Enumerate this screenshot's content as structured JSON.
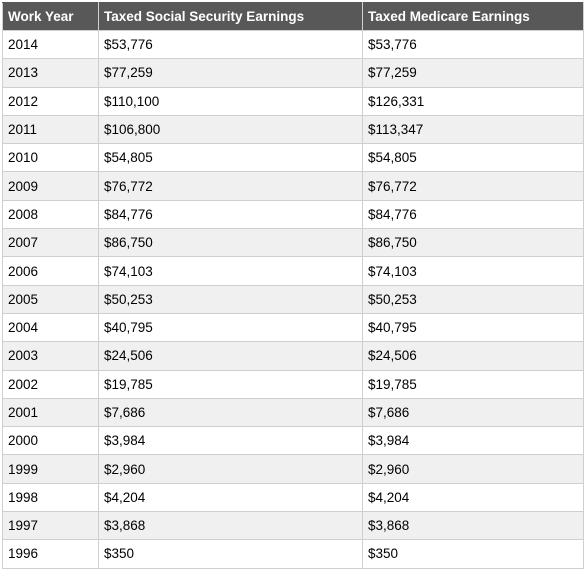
{
  "table": {
    "headers": [
      "Work Year",
      "Taxed Social Security Earnings",
      "Taxed Medicare Earnings"
    ],
    "rows": [
      [
        "2014",
        "$53,776",
        "$53,776"
      ],
      [
        "2013",
        "$77,259",
        "$77,259"
      ],
      [
        "2012",
        "$110,100",
        "$126,331"
      ],
      [
        "2011",
        "$106,800",
        "$113,347"
      ],
      [
        "2010",
        "$54,805",
        "$54,805"
      ],
      [
        "2009",
        "$76,772",
        "$76,772"
      ],
      [
        "2008",
        "$84,776",
        "$84,776"
      ],
      [
        "2007",
        "$86,750",
        "$86,750"
      ],
      [
        "2006",
        "$74,103",
        "$74,103"
      ],
      [
        "2005",
        "$50,253",
        "$50,253"
      ],
      [
        "2004",
        "$40,795",
        "$40,795"
      ],
      [
        "2003",
        "$24,506",
        "$24,506"
      ],
      [
        "2002",
        "$19,785",
        "$19,785"
      ],
      [
        "2001",
        "$7,686",
        "$7,686"
      ],
      [
        "2000",
        "$3,984",
        "$3,984"
      ],
      [
        "1999",
        "$2,960",
        "$2,960"
      ],
      [
        "1998",
        "$4,204",
        "$4,204"
      ],
      [
        "1997",
        "$3,868",
        "$3,868"
      ],
      [
        "1996",
        "$350",
        "$350"
      ]
    ]
  },
  "colors": {
    "header_background": "#585858",
    "header_text": "#ffffff",
    "row_alt_background": "#f0f0f0",
    "grid_line": "#cfcfcf"
  }
}
